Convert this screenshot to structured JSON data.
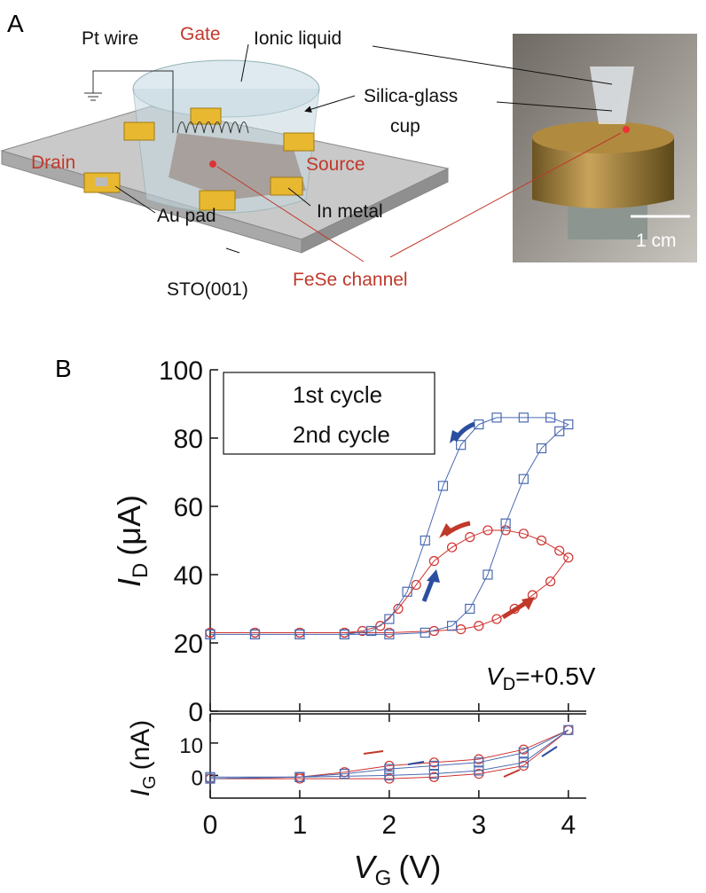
{
  "panel_a": {
    "label": "A",
    "pt_wire": "Pt wire",
    "gate": "Gate",
    "ionic_liquid": "Ionic liquid",
    "cup_line1": "Silica-glass",
    "cup_line2": "cup",
    "drain": "Drain",
    "source": "Source",
    "in_metal": "In metal",
    "au_pad": "Au pad",
    "fese_channel": "FeSe channel",
    "substrate": "STO(001)",
    "scale_bar": "1 cm"
  },
  "panel_b_label": "B",
  "chart_data": [
    {
      "type": "scatter",
      "xlim": [
        0,
        4.2
      ],
      "ylim": [
        0,
        100
      ],
      "yticks": [
        0,
        20,
        40,
        60,
        80,
        100
      ],
      "ylabel": {
        "symbol": "I",
        "subscript": "D",
        "unit": "(μA)"
      },
      "annotation": {
        "symbol": "V",
        "subscript": "D",
        "text": "=+0.5V"
      },
      "legend": "upper left",
      "series": [
        {
          "name": "1st cycle",
          "color": "#d0312d",
          "marker": "circle",
          "x": [
            0,
            0.5,
            1,
            1.5,
            2,
            2.5,
            2.8,
            3,
            3.2,
            3.4,
            3.6,
            3.8,
            4,
            3.9,
            3.7,
            3.5,
            3.3,
            3.1,
            2.9,
            2.7,
            2.5,
            2.3,
            2.1,
            1.9,
            1.7,
            1.5,
            1,
            0.5,
            0
          ],
          "values": [
            23,
            23,
            23,
            23,
            23,
            23.5,
            24,
            25,
            27,
            30,
            34,
            38,
            45,
            47,
            50,
            52,
            53,
            53,
            51,
            48,
            44,
            37,
            30,
            25,
            23.5,
            23,
            23,
            23,
            23
          ]
        },
        {
          "name": "2nd cycle",
          "color": "#4a6ab0",
          "marker": "square",
          "x": [
            0,
            0.5,
            1,
            1.5,
            2,
            2.4,
            2.7,
            2.9,
            3.1,
            3.3,
            3.5,
            3.7,
            3.9,
            4,
            3.8,
            3.5,
            3.2,
            3,
            2.8,
            2.6,
            2.4,
            2.2,
            2,
            1.8,
            1.5,
            1,
            0.5,
            0
          ],
          "values": [
            22.5,
            22.5,
            22.5,
            22.5,
            22.5,
            23,
            25,
            30,
            40,
            55,
            68,
            77,
            82,
            84,
            86,
            86,
            86,
            84,
            78,
            66,
            50,
            35,
            27,
            23.5,
            22.5,
            22.5,
            22.5,
            22.5
          ]
        }
      ]
    },
    {
      "type": "scatter",
      "xlim": [
        0,
        4.2
      ],
      "ylim": [
        -7,
        19
      ],
      "yticks": [
        0,
        10
      ],
      "xticks": [
        0,
        1,
        2,
        3,
        4
      ],
      "xlabel": {
        "symbol": "V",
        "subscript": "G",
        "unit": "(V)"
      },
      "ylabel": {
        "symbol": "I",
        "subscript": "G",
        "unit": "(nA)"
      },
      "series": [
        {
          "color": "#d0312d",
          "marker": "circle",
          "x": [
            0,
            1,
            1.5,
            2,
            2.5,
            3,
            3.5,
            4,
            3.5,
            3,
            2.5,
            2,
            1,
            0
          ],
          "values": [
            -1,
            -0.5,
            1,
            3,
            4,
            5,
            8,
            14,
            3,
            0.5,
            -0.5,
            -1,
            -1,
            -1
          ]
        },
        {
          "color": "#4a6ab0",
          "marker": "square",
          "x": [
            0,
            1,
            1.5,
            2,
            2.5,
            3,
            3.5,
            4,
            3.5,
            3,
            2.5,
            2,
            1,
            0
          ],
          "values": [
            -1,
            -0.5,
            0.5,
            2,
            3,
            4,
            7,
            14,
            4,
            1.5,
            0.5,
            0,
            -0.5,
            -0.5
          ]
        }
      ]
    }
  ]
}
